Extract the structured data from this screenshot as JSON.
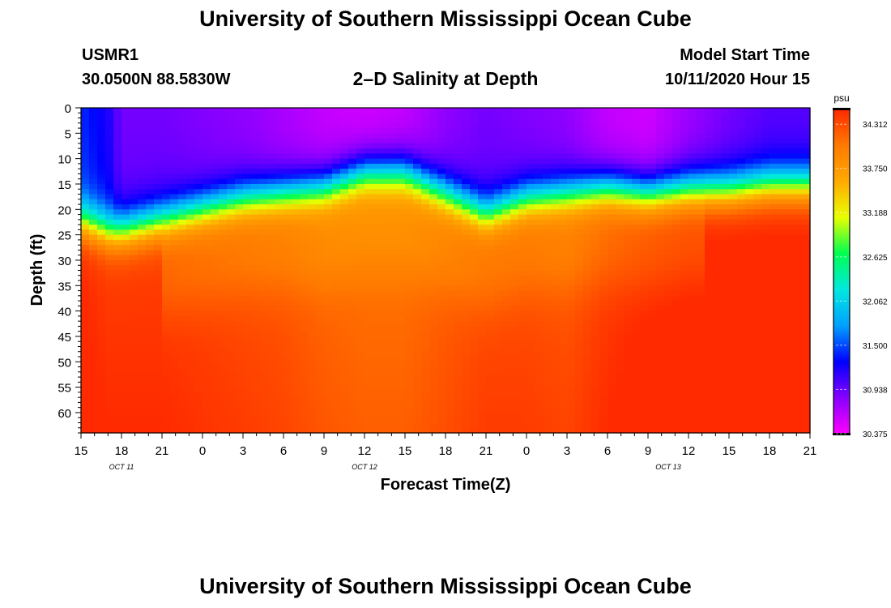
{
  "page": {
    "title_top": "University of Southern Mississippi Ocean Cube",
    "title_bottom": "University of Southern Mississippi Ocean Cube",
    "station_id": "USMR1",
    "station_coords": "30.0500N 88.5830W",
    "start_label": "Model Start Time",
    "start_value": "10/11/2020 Hour 15"
  },
  "chart_data": {
    "type": "heatmap",
    "title": "2–D Salinity at Depth",
    "xlabel": "Forecast Time(Z)",
    "ylabel": "Depth (ft)",
    "x_tick_labels": [
      "15",
      "18",
      "21",
      "0",
      "3",
      "6",
      "9",
      "12",
      "15",
      "18",
      "21",
      "0",
      "3",
      "6",
      "9",
      "12",
      "15",
      "18",
      "21"
    ],
    "date_labels": [
      {
        "text": "OCT 11",
        "hour_index": 1
      },
      {
        "text": "OCT 12",
        "hour_index": 7
      },
      {
        "text": "OCT 13",
        "hour_index": 14.5
      }
    ],
    "x_hours_range": [
      0,
      54
    ],
    "y_ticks": [
      0,
      5,
      10,
      15,
      20,
      25,
      30,
      35,
      40,
      45,
      50,
      55,
      60
    ],
    "ylim": [
      0,
      64
    ],
    "colorbar": {
      "unit": "psu",
      "min": 30.375,
      "max": 34.5,
      "tick_labels": [
        "34.312",
        "33.750",
        "33.188",
        "32.625",
        "32.062",
        "31.500",
        "30.938",
        "30.375"
      ],
      "colors": [
        "#ff00ff",
        "#8800ff",
        "#0000ff",
        "#00a0ff",
        "#00e8e0",
        "#00ff50",
        "#e8ff00",
        "#ffaa00",
        "#ff7a00",
        "#ff2a00"
      ]
    },
    "field": {
      "description_hours": [
        0,
        2,
        3,
        6,
        9,
        12,
        15,
        18,
        21,
        24,
        27,
        30,
        33,
        36,
        39,
        42,
        45,
        48,
        51,
        54
      ],
      "halocline_depth_ft": [
        22,
        24,
        24,
        22,
        20,
        18,
        17,
        16,
        13,
        13,
        17,
        21,
        18,
        17,
        16,
        17,
        16,
        16,
        15,
        15
      ],
      "surface_salinity_psu": [
        31.4,
        31.2,
        30.9,
        30.9,
        30.85,
        30.8,
        30.7,
        30.6,
        30.55,
        30.6,
        30.8,
        30.9,
        30.85,
        30.8,
        30.6,
        30.55,
        30.75,
        30.9,
        31.0,
        31.0
      ],
      "deep_salinity_psu": [
        34.4,
        34.3,
        34.3,
        34.3,
        34.25,
        34.2,
        34.15,
        34.05,
        34.0,
        34.0,
        34.1,
        34.2,
        34.2,
        34.15,
        34.3,
        34.4,
        34.45,
        34.45,
        34.45,
        34.45
      ]
    }
  }
}
